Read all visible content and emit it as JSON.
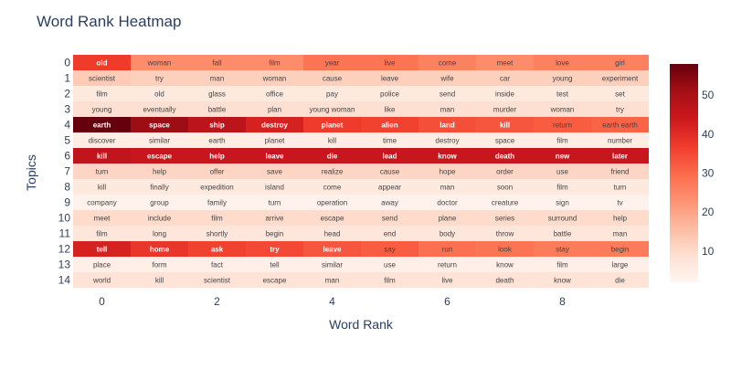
{
  "chart_data": {
    "type": "heatmap",
    "title": "Word Rank Heatmap",
    "xlabel": "Word Rank",
    "ylabel": "Topics",
    "x_tick_values": [
      0,
      2,
      4,
      6,
      8
    ],
    "y_tick_values": [
      0,
      1,
      2,
      3,
      4,
      5,
      6,
      7,
      8,
      9,
      10,
      11,
      12,
      13,
      14
    ],
    "colorbar": {
      "ticks": [
        10,
        20,
        30,
        40,
        50
      ],
      "range": [
        2,
        58
      ],
      "colorscale": "Reds"
    },
    "rows": [
      {
        "words": [
          "old",
          "woman",
          "fall",
          "film",
          "year",
          "live",
          "come",
          "meet",
          "love",
          "girl"
        ],
        "values": [
          37,
          24,
          24,
          24,
          28,
          28,
          26,
          24,
          26,
          26
        ]
      },
      {
        "words": [
          "scientist",
          "try",
          "man",
          "woman",
          "cause",
          "leave",
          "wife",
          "car",
          "young",
          "experiment"
        ],
        "values": [
          13,
          12,
          12,
          12,
          12,
          12,
          12,
          12,
          12,
          12
        ]
      },
      {
        "words": [
          "film",
          "old",
          "glass",
          "office",
          "pay",
          "police",
          "send",
          "inside",
          "test",
          "set"
        ],
        "values": [
          6,
          6,
          6,
          6,
          6,
          6,
          6,
          6,
          6,
          6
        ]
      },
      {
        "words": [
          "young",
          "eventually",
          "battle",
          "plan",
          "young woman",
          "like",
          "man",
          "murder",
          "woman",
          "try"
        ],
        "values": [
          9,
          9,
          9,
          9,
          9,
          9,
          9,
          9,
          9,
          9
        ]
      },
      {
        "words": [
          "earth",
          "space",
          "ship",
          "destroy",
          "planet",
          "alien",
          "land",
          "kill",
          "return",
          "earth earth"
        ],
        "values": [
          58,
          52,
          47,
          42,
          37,
          36,
          34,
          33,
          32,
          31
        ]
      },
      {
        "words": [
          "discover",
          "similar",
          "earth",
          "planet",
          "kill",
          "time",
          "destroy",
          "space",
          "film",
          "number"
        ],
        "values": [
          5,
          5,
          5,
          5,
          5,
          5,
          5,
          5,
          5,
          5
        ]
      },
      {
        "words": [
          "kill",
          "escape",
          "help",
          "leave",
          "die",
          "lead",
          "know",
          "death",
          "new",
          "later"
        ],
        "values": [
          46,
          45,
          45,
          45,
          45,
          45,
          45,
          45,
          45,
          45
        ]
      },
      {
        "words": [
          "turn",
          "help",
          "offer",
          "save",
          "realize",
          "cause",
          "hope",
          "order",
          "use",
          "friend"
        ],
        "values": [
          11,
          11,
          11,
          11,
          11,
          11,
          11,
          11,
          11,
          11
        ]
      },
      {
        "words": [
          "kill",
          "finally",
          "expedition",
          "island",
          "come",
          "appear",
          "man",
          "soon",
          "film",
          "turn"
        ],
        "values": [
          6,
          6,
          6,
          6,
          6,
          6,
          6,
          6,
          6,
          6
        ]
      },
      {
        "words": [
          "company",
          "group",
          "family",
          "turn",
          "operation",
          "away",
          "doctor",
          "creature",
          "sign",
          "tv"
        ],
        "values": [
          3,
          3,
          3,
          3,
          3,
          3,
          3,
          3,
          3,
          3
        ]
      },
      {
        "words": [
          "meet",
          "include",
          "film",
          "arrive",
          "escape",
          "send",
          "plane",
          "series",
          "surround",
          "help"
        ],
        "values": [
          10,
          10,
          10,
          10,
          10,
          10,
          10,
          10,
          10,
          10
        ]
      },
      {
        "words": [
          "film",
          "long",
          "shortly",
          "begin",
          "head",
          "end",
          "body",
          "throw",
          "battle",
          "man"
        ],
        "values": [
          7,
          7,
          7,
          7,
          7,
          7,
          7,
          7,
          7,
          7
        ]
      },
      {
        "words": [
          "tell",
          "home",
          "ask",
          "try",
          "leave",
          "say",
          "run",
          "look",
          "stay",
          "begin"
        ],
        "values": [
          42,
          38,
          36,
          35,
          33,
          32,
          29,
          28,
          27,
          27
        ]
      },
      {
        "words": [
          "place",
          "form",
          "fact",
          "tell",
          "similar",
          "use",
          "return",
          "know",
          "film",
          "large"
        ],
        "values": [
          4,
          4,
          4,
          4,
          4,
          4,
          4,
          4,
          4,
          4
        ]
      },
      {
        "words": [
          "world",
          "kill",
          "scientist",
          "escape",
          "man",
          "film",
          "live",
          "death",
          "know",
          "die"
        ],
        "values": [
          8,
          8,
          8,
          8,
          8,
          8,
          8,
          8,
          8,
          8
        ]
      }
    ]
  }
}
